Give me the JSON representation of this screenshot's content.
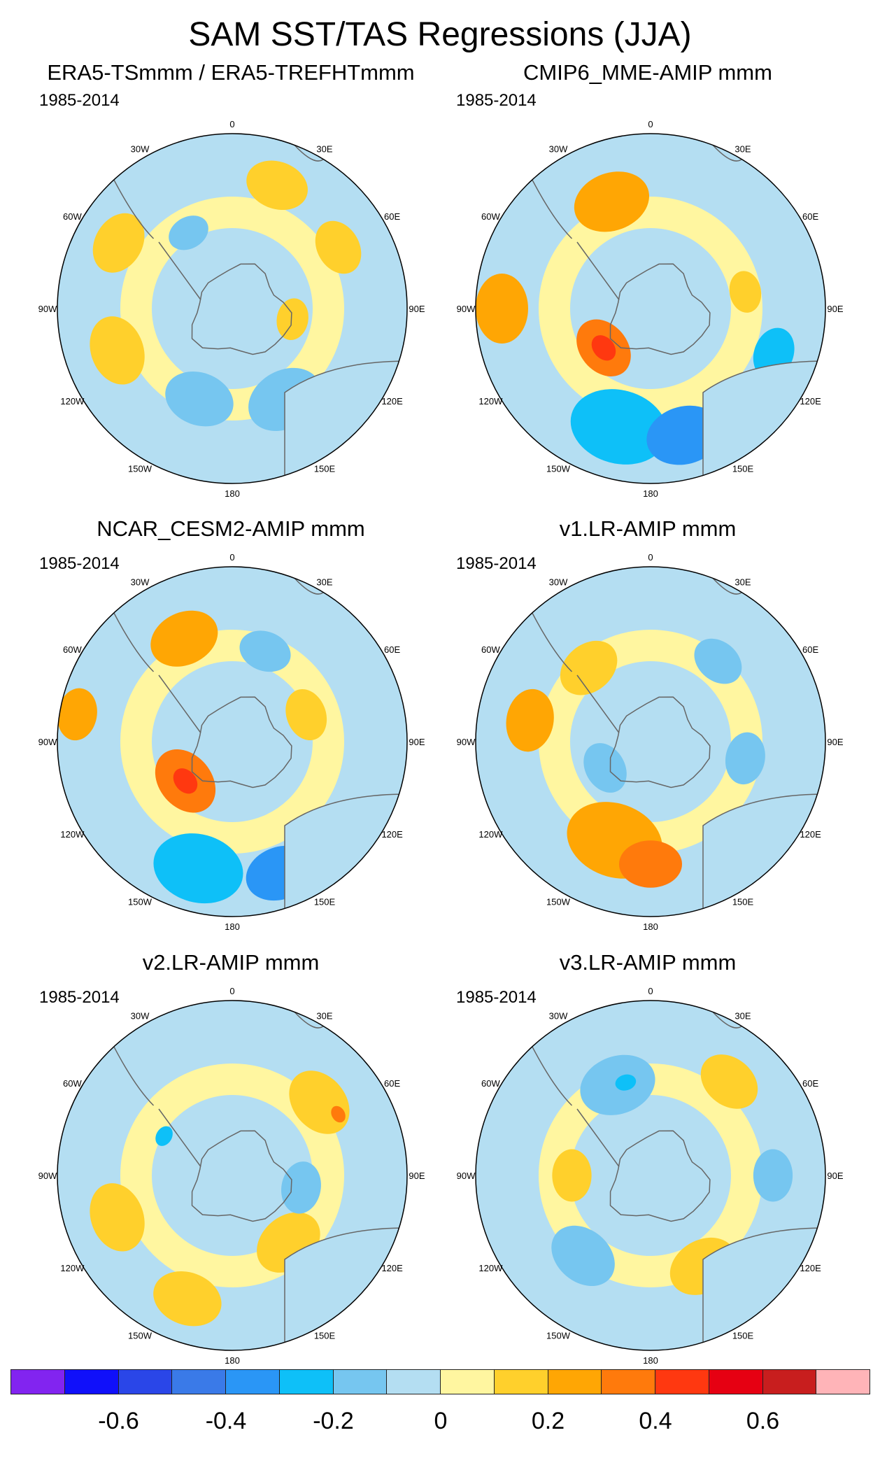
{
  "title": "SAM SST/TAS Regressions (JJA)",
  "period": "1985-2014",
  "lon_labels": [
    "0",
    "30E",
    "60E",
    "90E",
    "120E",
    "150E",
    "180",
    "150W",
    "120W",
    "90W",
    "60W",
    "30W"
  ],
  "panels": [
    {
      "title": "ERA5-TSmmm / ERA5-TREFHTmmm"
    },
    {
      "title": "CMIP6_MME-AMIP  mmm"
    },
    {
      "title": "NCAR_CESM2-AMIP  mmm"
    },
    {
      "title": "v1.LR-AMIP  mmm"
    },
    {
      "title": "v2.LR-AMIP  mmm"
    },
    {
      "title": "v3.LR-AMIP  mmm"
    }
  ],
  "colorbar": {
    "colors": [
      "#8224f0",
      "#1010fa",
      "#2a46e8",
      "#3a7ae8",
      "#2a96f6",
      "#0ec0f8",
      "#76c6f0",
      "#b4def2",
      "#fff6a0",
      "#ffd02c",
      "#ffa604",
      "#ff7a0c",
      "#ff3810",
      "#e60012",
      "#c81e1e",
      "#ffb4b8"
    ],
    "labels": [
      "-0.6",
      "-0.4",
      "-0.2",
      "0",
      "0.2",
      "0.4",
      "0.6"
    ]
  }
}
